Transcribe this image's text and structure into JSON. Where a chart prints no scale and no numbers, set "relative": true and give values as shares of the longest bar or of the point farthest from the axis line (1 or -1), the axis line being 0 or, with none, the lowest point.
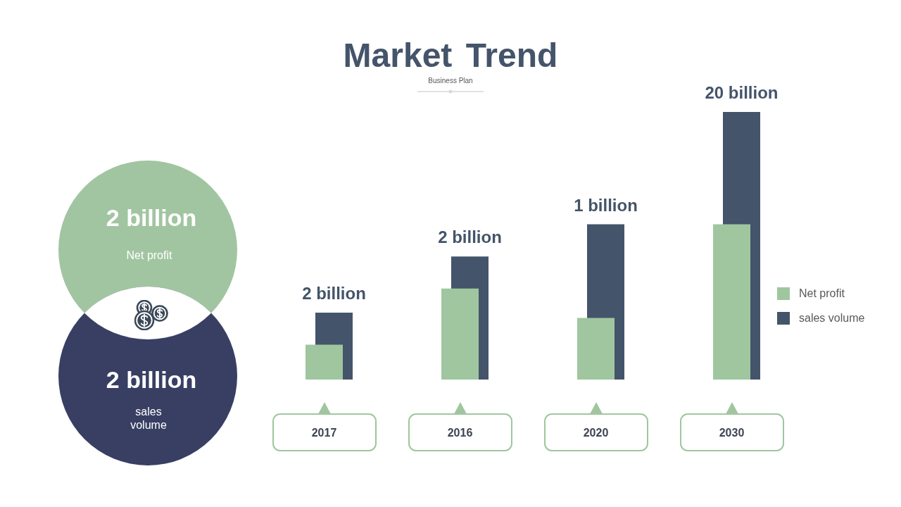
{
  "chart_data": [
    {
      "type": "other",
      "colors": [
        "#a1c5a1",
        "#383f63"
      ],
      "annotations": [
        "2 billion",
        "Net profit",
        "2 billion",
        "sales volume"
      ]
    },
    {
      "type": "bar",
      "title": "Market Trend",
      "subtitle": "Business Plan",
      "categories": [
        "2017",
        "2016",
        "2020",
        "2030"
      ],
      "relative": true,
      "series": [
        {
          "name": "Net profit",
          "color": "#a0c6a0",
          "values": [
            0.13,
            0.34,
            0.23,
            0.58
          ]
        },
        {
          "name": "sales volume",
          "color": "#44546a",
          "values": [
            0.25,
            0.46,
            0.58,
            1
          ]
        }
      ],
      "annotations": [
        {
          "text": "2 billion",
          "x": "2017",
          "y": 0.25
        },
        {
          "text": "2 billion",
          "x": "2016",
          "y": 0.46
        },
        {
          "text": "1 billion",
          "x": "2020",
          "y": 0.58
        },
        {
          "text": "20 billion",
          "x": "2030",
          "y": 1
        }
      ],
      "legend": "right"
    }
  ]
}
